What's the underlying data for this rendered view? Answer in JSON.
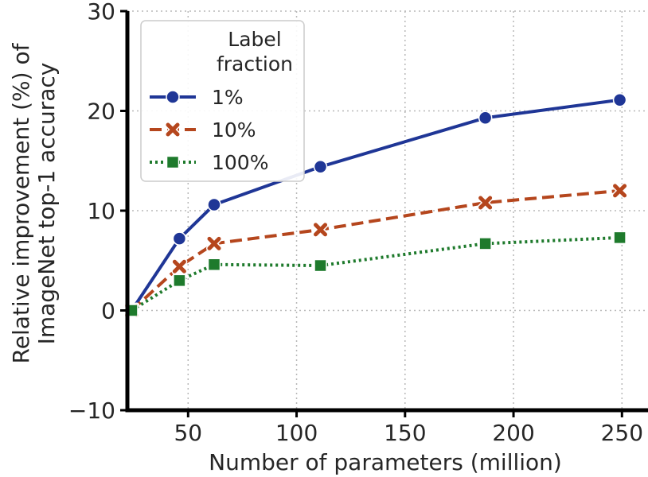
{
  "chart_data": {
    "type": "line",
    "title": "",
    "xlabel": "Number of parameters (million)",
    "ylabel": [
      "Relative improvement (%) of",
      "ImageNet top-1 accuracy"
    ],
    "xlim": [
      22,
      262
    ],
    "ylim": [
      -10,
      30
    ],
    "x_ticks": [
      50,
      100,
      150,
      200,
      250
    ],
    "y_ticks": [
      -10,
      0,
      10,
      20,
      30
    ],
    "x_tick_labels": [
      "50",
      "100",
      "150",
      "200",
      "250"
    ],
    "y_tick_labels": [
      "−10",
      "0",
      "10",
      "20",
      "30"
    ],
    "grid": true,
    "legend": {
      "title": [
        "Label",
        "fraction"
      ],
      "placement": "top-left"
    },
    "x": [
      24,
      46,
      62,
      111,
      187,
      249
    ],
    "series": [
      {
        "name": "1%",
        "values": [
          0,
          7.2,
          10.6,
          14.4,
          19.3,
          21.1
        ],
        "color": "#1f3696",
        "marker": "circle",
        "linestyle": "solid"
      },
      {
        "name": "10%",
        "values": [
          0,
          4.4,
          6.7,
          8.1,
          10.8,
          12.0
        ],
        "color": "#b5461d",
        "marker": "x",
        "linestyle": "dashed"
      },
      {
        "name": "100%",
        "values": [
          0,
          3.0,
          4.6,
          4.5,
          6.7,
          7.3
        ],
        "color": "#1e7a2c",
        "marker": "square",
        "linestyle": "dotted"
      }
    ]
  }
}
